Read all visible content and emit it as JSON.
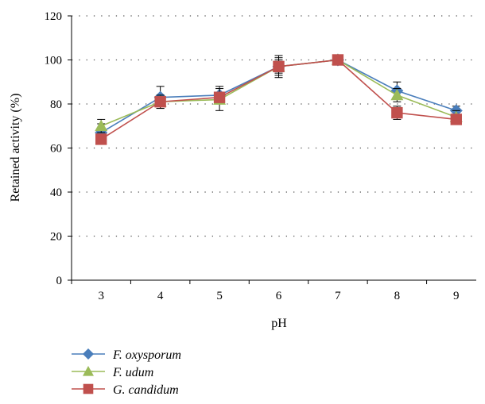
{
  "chart_data": {
    "type": "line",
    "xlabel": "pH",
    "ylabel": "Retained activity (%)",
    "categories": [
      "3",
      "4",
      "5",
      "6",
      "7",
      "8",
      "9"
    ],
    "ylim": [
      0,
      120
    ],
    "yticks": [
      "0",
      "20",
      "40",
      "60",
      "80",
      "100",
      "120"
    ],
    "grid": "horizontal dotted",
    "legend": "bottom-left",
    "series": [
      {
        "name": "F. oxysporum",
        "color": "#4a7ebb",
        "marker": "diamond",
        "values": [
          67,
          83,
          84,
          97,
          100,
          86,
          77
        ],
        "errors": [
          4,
          5,
          4,
          5,
          1,
          4,
          2
        ]
      },
      {
        "name": "F. udum",
        "color": "#9bbb59",
        "marker": "triangle",
        "values": [
          70,
          81,
          82,
          97,
          100,
          84,
          74
        ],
        "errors": [
          3,
          3,
          5,
          4,
          1,
          3,
          3
        ]
      },
      {
        "name": "G. candidum",
        "color": "#c0504d",
        "marker": "square",
        "values": [
          64,
          81,
          83,
          97,
          100,
          76,
          73
        ],
        "errors": [
          2,
          2,
          2,
          3,
          1,
          3,
          2
        ]
      }
    ]
  }
}
